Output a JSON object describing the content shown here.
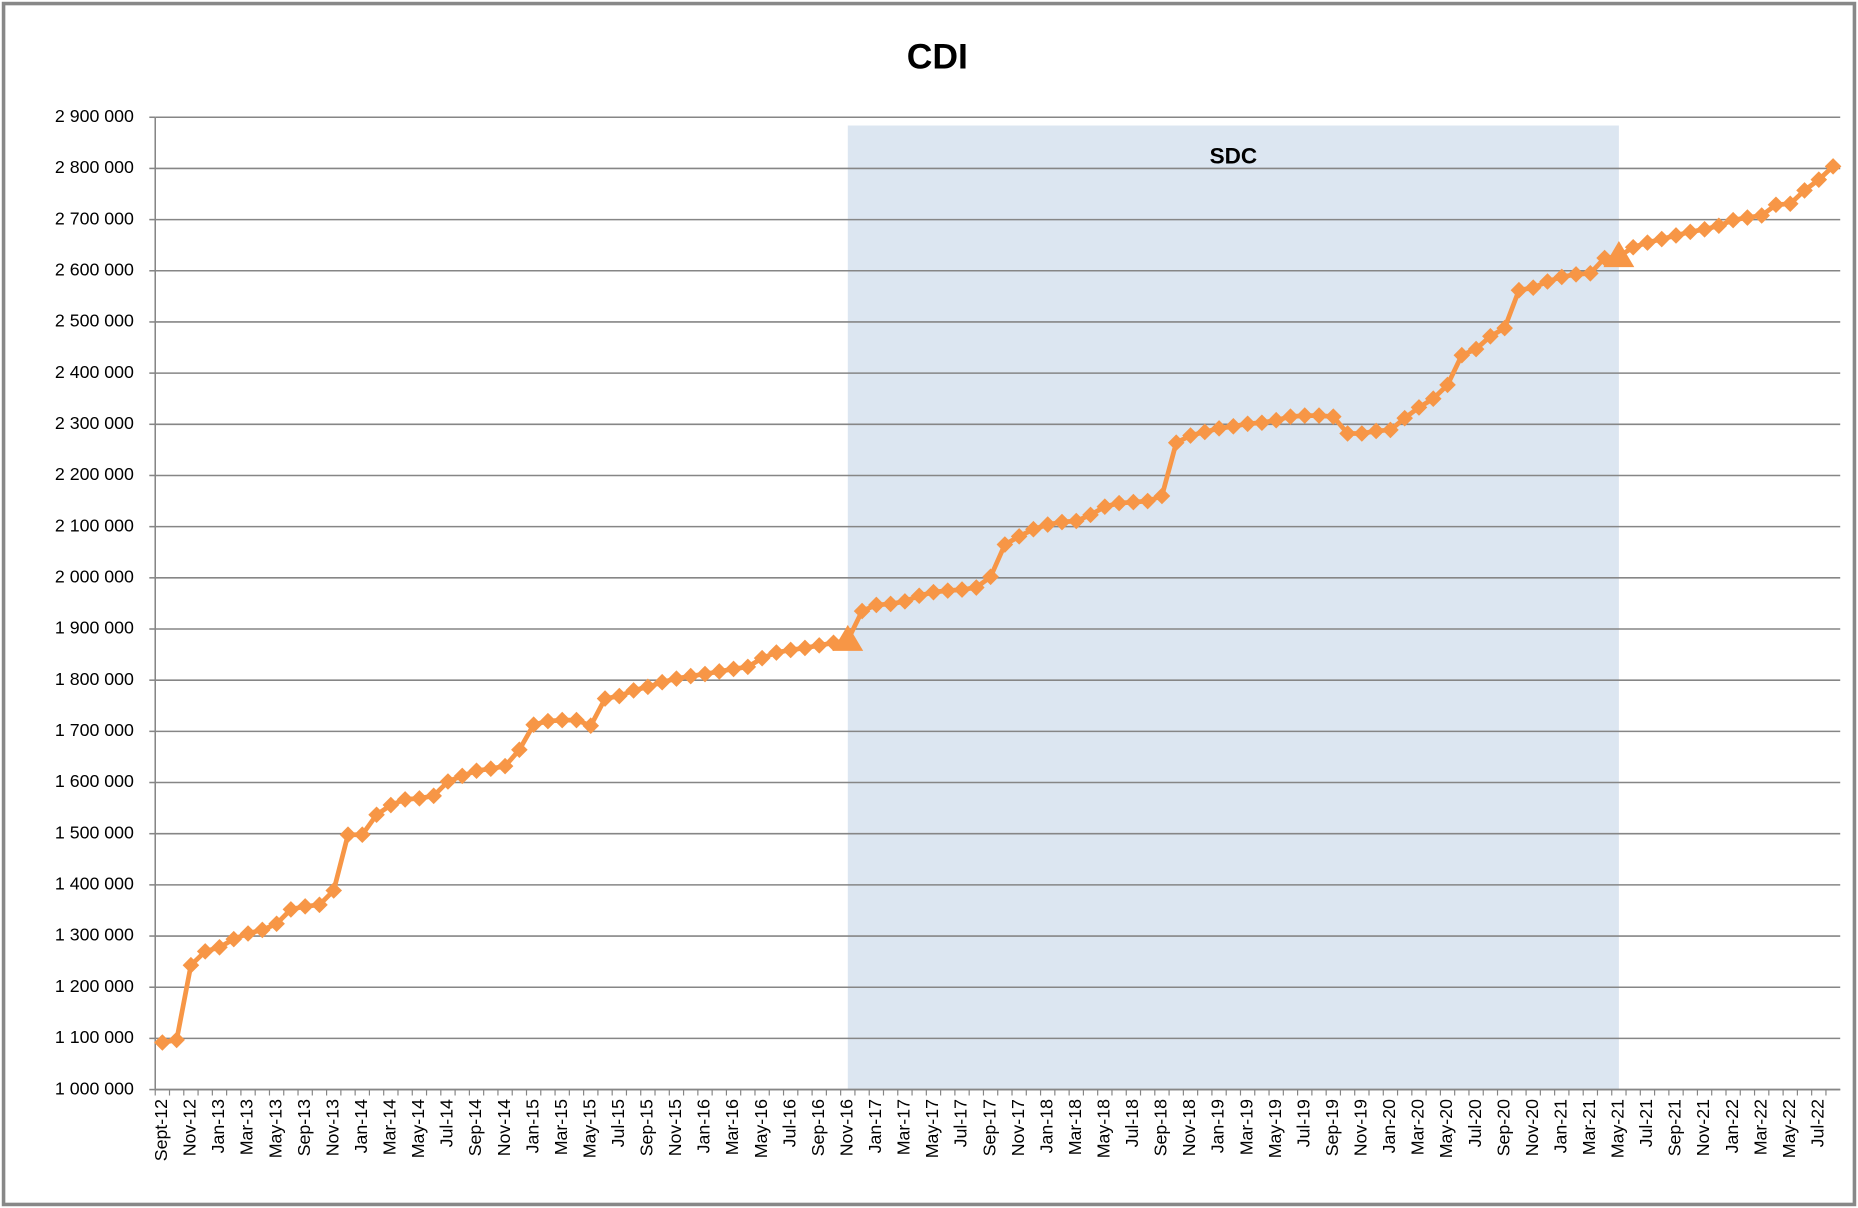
{
  "chart_data": {
    "type": "line",
    "title": "CDI",
    "categories": [
      "Sept-12",
      null,
      "Nov-12",
      null,
      "Jan-13",
      null,
      "Mar-13",
      null,
      "May-13",
      null,
      "Sep-13",
      null,
      "Nov-13",
      null,
      "Jan-14",
      null,
      "Mar-14",
      null,
      "May-14",
      null,
      "Jul-14",
      null,
      "Sep-14",
      null,
      "Nov-14",
      null,
      "Jan-15",
      null,
      "Mar-15",
      null,
      "May-15",
      null,
      "Jul-15",
      null,
      "Sep-15",
      null,
      "Nov-15",
      null,
      "Jan-16",
      null,
      "Mar-16",
      null,
      "May-16",
      null,
      "Jul-16",
      null,
      "Sep-16",
      null,
      "Nov-16",
      null,
      "Jan-17",
      null,
      "Mar-17",
      null,
      "May-17",
      null,
      "Jul-17",
      null,
      "Sep-17",
      null,
      "Nov-17",
      null,
      "Jan-18",
      null,
      "Mar-18",
      null,
      "May-18",
      null,
      "Jul-18",
      null,
      "Sep-18",
      null,
      "Nov-18",
      null,
      "Jan-19",
      null,
      "Mar-19",
      null,
      "May-19",
      null,
      "Jul-19",
      null,
      "Sep-19",
      null,
      "Nov-19",
      null,
      "Jan-20",
      null,
      "Mar-20",
      null,
      "May-20",
      null,
      "Jul-20",
      null,
      "Sep-20",
      null,
      "Nov-20",
      null,
      "Jan-21",
      null,
      "Mar-21",
      null,
      "May-21",
      null,
      "Jul-21",
      null,
      "Sep-21",
      null,
      "Nov-21",
      null,
      "Jan-22",
      null,
      "Mar-22",
      null,
      "May-22",
      null,
      "Jul-22",
      null
    ],
    "values": [
      1092000,
      1097000,
      1243000,
      1270000,
      1278000,
      1294000,
      1305000,
      1312000,
      1324000,
      1352000,
      1358000,
      1361000,
      1389000,
      1498000,
      1498000,
      1537000,
      1556000,
      1567000,
      1569000,
      1574000,
      1602000,
      1613000,
      1623000,
      1627000,
      1632000,
      1664000,
      1713000,
      1720000,
      1722000,
      1722000,
      1711000,
      1764000,
      1769000,
      1780000,
      1787000,
      1796000,
      1803000,
      1808000,
      1812000,
      1817000,
      1822000,
      1826000,
      1843000,
      1854000,
      1859000,
      1863000,
      1868000,
      1873000,
      1878000,
      1935000,
      1947000,
      1949000,
      1954000,
      1965000,
      1972000,
      1975000,
      1977000,
      1981000,
      2002000,
      2065000,
      2081000,
      2095000,
      2104000,
      2109000,
      2111000,
      2123000,
      2139000,
      2146000,
      2148000,
      2150000,
      2160000,
      2264000,
      2278000,
      2285000,
      2292000,
      2296000,
      2301000,
      2303000,
      2308000,
      2315000,
      2317000,
      2317000,
      2315000,
      2282000,
      2282000,
      2287000,
      2289000,
      2312000,
      2333000,
      2350000,
      2377000,
      2435000,
      2447000,
      2472000,
      2488000,
      2562000,
      2567000,
      2579000,
      2588000,
      2593000,
      2595000,
      2625000,
      2628000,
      2646000,
      2655000,
      2662000,
      2669000,
      2676000,
      2681000,
      2688000,
      2699000,
      2704000,
      2708000,
      2729000,
      2731000,
      2757000,
      2778000,
      2804000
    ],
    "color": "#f79646",
    "ylim": [
      1000000,
      2900000
    ],
    "yticks": [
      {
        "value": 1000000,
        "label": "1 000 000"
      },
      {
        "value": 1100000,
        "label": "1 100 000"
      },
      {
        "value": 1200000,
        "label": "1 200 000"
      },
      {
        "value": 1300000,
        "label": "1 300 000"
      },
      {
        "value": 1400000,
        "label": "1 400 000"
      },
      {
        "value": 1500000,
        "label": "1 500 000"
      },
      {
        "value": 1600000,
        "label": "1 600 000"
      },
      {
        "value": 1700000,
        "label": "1 700 000"
      },
      {
        "value": 1800000,
        "label": "1 800 000"
      },
      {
        "value": 1900000,
        "label": "1 900 000"
      },
      {
        "value": 2000000,
        "label": "2 000 000"
      },
      {
        "value": 2100000,
        "label": "2 100 000"
      },
      {
        "value": 2200000,
        "label": "2 200 000"
      },
      {
        "value": 2300000,
        "label": "2 300 000"
      },
      {
        "value": 2400000,
        "label": "2 400 000"
      },
      {
        "value": 2500000,
        "label": "2 500 000"
      },
      {
        "value": 2600000,
        "label": "2 600 000"
      },
      {
        "value": 2700000,
        "label": "2 700 000"
      },
      {
        "value": 2800000,
        "label": "2 800 000"
      },
      {
        "value": 2900000,
        "label": "2 900 000"
      }
    ],
    "grid": true,
    "shaded_region": {
      "label": "SDC",
      "from": "Nov-16",
      "to": "May-21",
      "color": "#dce6f1",
      "label_color": "#1f497d"
    }
  }
}
